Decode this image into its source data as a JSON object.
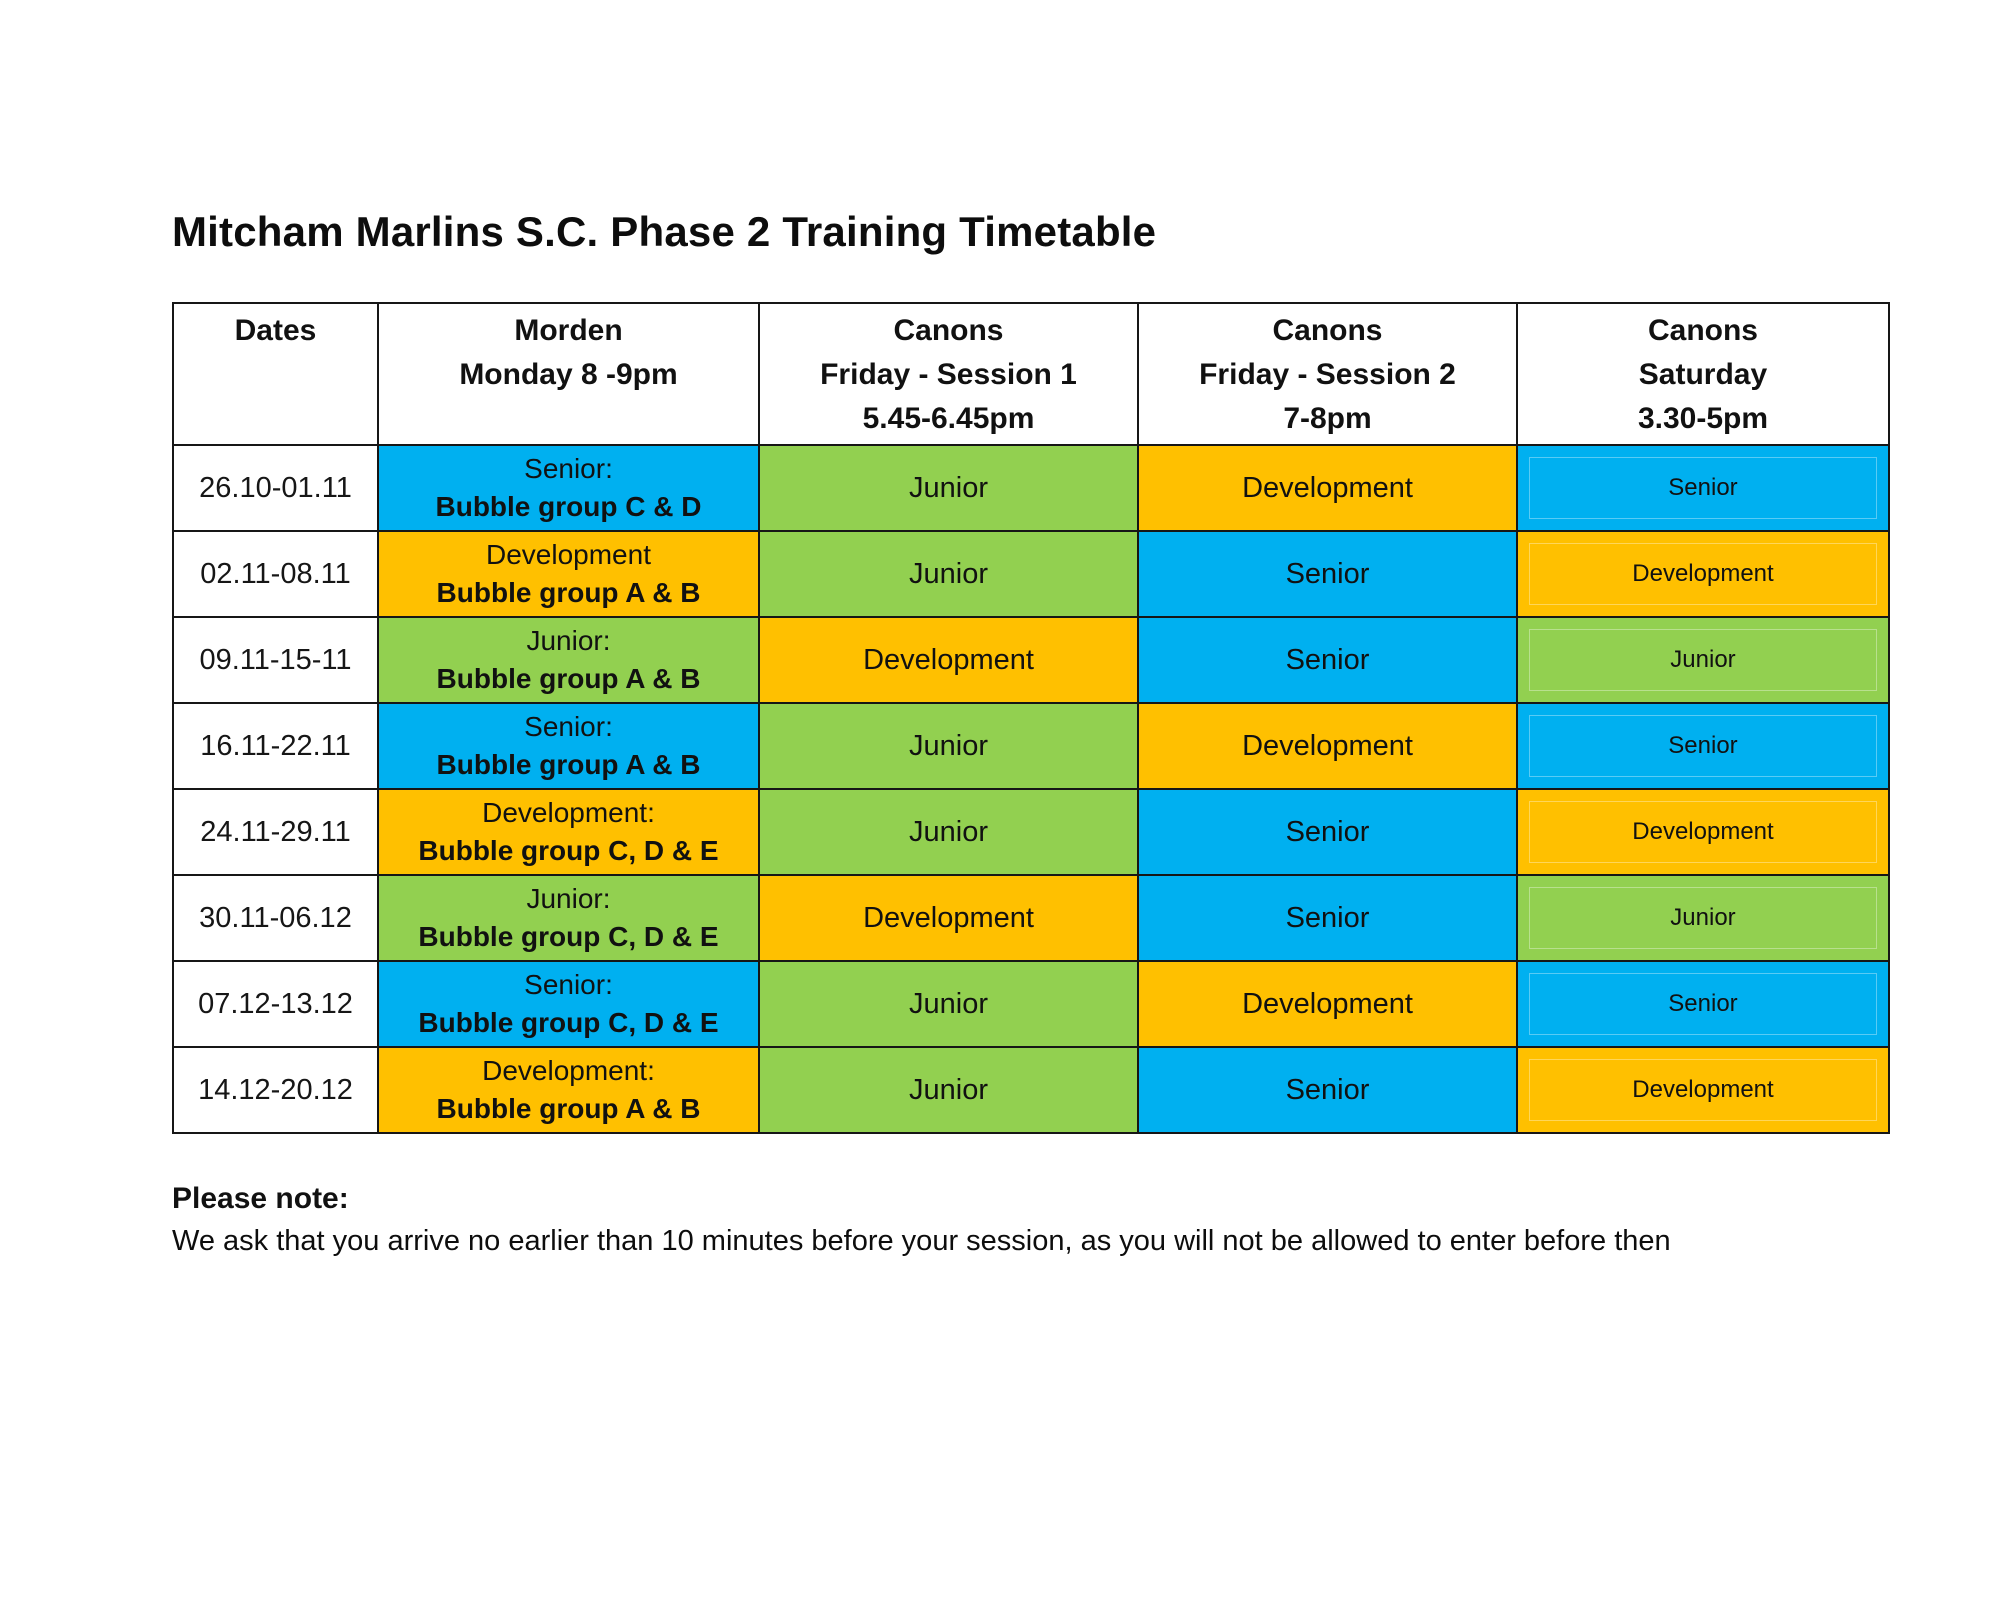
{
  "page": {
    "title": "Mitcham Marlins S.C. Phase 2 Training Timetable"
  },
  "colors": {
    "blue": "#00B0F0",
    "yellow": "#FFC000",
    "green": "#92D050"
  },
  "legend": {
    "blue_means": "Senior",
    "yellow_means": "Development",
    "green_means": "Junior"
  },
  "table": {
    "columns": [
      {
        "key": "dates",
        "lines": [
          "Dates"
        ]
      },
      {
        "key": "morden",
        "lines": [
          "Morden",
          "Monday 8 -9pm"
        ]
      },
      {
        "key": "friday_s1",
        "lines": [
          "Canons",
          "Friday - Session 1",
          "5.45-6.45pm"
        ]
      },
      {
        "key": "friday_s2",
        "lines": [
          "Canons",
          "Friday - Session 2",
          "7-8pm"
        ]
      },
      {
        "key": "saturday",
        "lines": [
          "Canons",
          "Saturday",
          "3.30-5pm"
        ]
      }
    ],
    "rows": [
      {
        "date": "26.10-01.11",
        "morden": {
          "line1": "Senior:",
          "line2": "Bubble group C & D",
          "color": "blue"
        },
        "friday_s1": {
          "label": "Junior",
          "color": "green"
        },
        "friday_s2": {
          "label": "Development",
          "color": "yellow"
        },
        "saturday": {
          "label": "Senior",
          "color": "blue"
        }
      },
      {
        "date": "02.11-08.11",
        "morden": {
          "line1": "Development",
          "line2": "Bubble group A & B",
          "color": "yellow"
        },
        "friday_s1": {
          "label": "Junior",
          "color": "green"
        },
        "friday_s2": {
          "label": "Senior",
          "color": "blue"
        },
        "saturday": {
          "label": "Development",
          "color": "yellow"
        }
      },
      {
        "date": "09.11-15-11",
        "morden": {
          "line1": "Junior:",
          "line2": "Bubble group A & B",
          "color": "green"
        },
        "friday_s1": {
          "label": "Development",
          "color": "yellow"
        },
        "friday_s2": {
          "label": "Senior",
          "color": "blue"
        },
        "saturday": {
          "label": "Junior",
          "color": "green"
        }
      },
      {
        "date": "16.11-22.11",
        "morden": {
          "line1": "Senior:",
          "line2": "Bubble group A & B",
          "color": "blue"
        },
        "friday_s1": {
          "label": "Junior",
          "color": "green"
        },
        "friday_s2": {
          "label": "Development",
          "color": "yellow"
        },
        "saturday": {
          "label": "Senior",
          "color": "blue"
        }
      },
      {
        "date": "24.11-29.11",
        "morden": {
          "line1": "Development:",
          "line2": "Bubble group C, D & E",
          "color": "yellow"
        },
        "friday_s1": {
          "label": "Junior",
          "color": "green"
        },
        "friday_s2": {
          "label": "Senior",
          "color": "blue"
        },
        "saturday": {
          "label": "Development",
          "color": "yellow"
        }
      },
      {
        "date": "30.11-06.12",
        "morden": {
          "line1": "Junior:",
          "line2": "Bubble group C, D & E",
          "color": "green"
        },
        "friday_s1": {
          "label": "Development",
          "color": "yellow"
        },
        "friday_s2": {
          "label": "Senior",
          "color": "blue"
        },
        "saturday": {
          "label": "Junior",
          "color": "green"
        }
      },
      {
        "date": "07.12-13.12",
        "morden": {
          "line1": "Senior:",
          "line2": "Bubble group C, D & E",
          "color": "blue"
        },
        "friday_s1": {
          "label": "Junior",
          "color": "green"
        },
        "friday_s2": {
          "label": "Development",
          "color": "yellow"
        },
        "saturday": {
          "label": "Senior",
          "color": "blue"
        }
      },
      {
        "date": "14.12-20.12",
        "morden": {
          "line1": "Development:",
          "line2": "Bubble group A & B",
          "color": "yellow"
        },
        "friday_s1": {
          "label": "Junior",
          "color": "green"
        },
        "friday_s2": {
          "label": "Senior",
          "color": "blue"
        },
        "saturday": {
          "label": "Development",
          "color": "yellow"
        }
      }
    ]
  },
  "note": {
    "heading": "Please note:",
    "body": "We ask that you arrive no earlier than 10 minutes before your session, as you will not be allowed to enter before then"
  }
}
